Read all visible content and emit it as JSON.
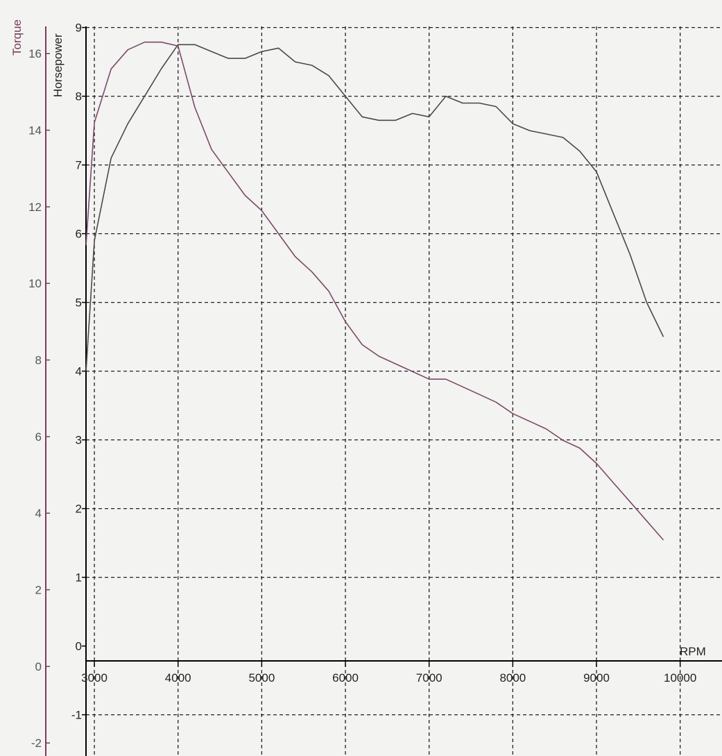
{
  "chart_data": {
    "type": "line",
    "grid": true,
    "xlabel": "RPM",
    "xlim": [
      2900,
      10500
    ],
    "x_ticks": [
      {
        "v": 3000,
        "label": "3000"
      },
      {
        "v": 4000,
        "label": "4000"
      },
      {
        "v": 5000,
        "label": "5000"
      },
      {
        "v": 6000,
        "label": "6000"
      },
      {
        "v": 7000,
        "label": "7000"
      },
      {
        "v": 8000,
        "label": "8000"
      },
      {
        "v": 9000,
        "label": "9000"
      },
      {
        "v": 10000,
        "label": "10000"
      }
    ],
    "y_axes": [
      {
        "id": "hp",
        "label": "Horsepower",
        "color": "#222222",
        "ylim": [
          -1.6,
          9.4
        ],
        "ticks": [
          {
            "v": 9,
            "label": "9"
          },
          {
            "v": 8,
            "label": "8"
          },
          {
            "v": 7,
            "label": "7"
          },
          {
            "v": 6,
            "label": "6"
          },
          {
            "v": 5,
            "label": "5"
          },
          {
            "v": 4,
            "label": "4"
          },
          {
            "v": 3,
            "label": "3"
          },
          {
            "v": 2,
            "label": "2"
          },
          {
            "v": 1,
            "label": "1"
          },
          {
            "v": 0,
            "label": "0"
          },
          {
            "v": -1,
            "label": "-1"
          }
        ]
      },
      {
        "id": "torque",
        "label": "Torque",
        "color": "#7a3a5a",
        "ylim": [
          -2.34,
          17.4
        ],
        "ticks": [
          {
            "v": 16,
            "label": "16"
          },
          {
            "v": 14,
            "label": "14"
          },
          {
            "v": 12,
            "label": "12"
          },
          {
            "v": 10,
            "label": "10"
          },
          {
            "v": 8,
            "label": "8"
          },
          {
            "v": 6,
            "label": "6"
          },
          {
            "v": 4,
            "label": "4"
          },
          {
            "v": 2,
            "label": "2"
          },
          {
            "v": 0,
            "label": "0"
          },
          {
            "v": -2,
            "label": "-2"
          }
        ]
      }
    ],
    "series": [
      {
        "axis": "hp",
        "color": "#4a4a40",
        "x": [
          2900,
          3000,
          3200,
          3400,
          3600,
          3800,
          4000,
          4200,
          4400,
          4600,
          4800,
          5000,
          5200,
          5400,
          5600,
          5800,
          6000,
          6200,
          6400,
          6600,
          6800,
          7000,
          7200,
          7400,
          7600,
          7800,
          8000,
          8200,
          8400,
          8600,
          8800,
          9000,
          9200,
          9400,
          9600,
          9800
        ],
        "y": [
          4.0,
          5.9,
          7.1,
          7.6,
          8.0,
          8.4,
          8.75,
          8.75,
          8.65,
          8.55,
          8.55,
          8.65,
          8.7,
          8.5,
          8.45,
          8.3,
          8.0,
          7.7,
          7.65,
          7.65,
          7.75,
          7.7,
          8.0,
          7.9,
          7.9,
          7.85,
          7.6,
          7.5,
          7.45,
          7.4,
          7.2,
          6.9,
          6.3,
          5.7,
          5.0,
          4.5
        ]
      },
      {
        "axis": "torque",
        "color": "#7a4a6a",
        "x": [
          2900,
          3000,
          3200,
          3400,
          3600,
          3800,
          4000,
          4200,
          4400,
          4600,
          4800,
          5000,
          5200,
          5400,
          5600,
          5800,
          6000,
          6200,
          6400,
          6600,
          6800,
          7000,
          7200,
          7400,
          7600,
          7800,
          8000,
          8200,
          8400,
          8600,
          8800,
          9000,
          9200,
          9400,
          9600,
          9800
        ],
        "y": [
          11.0,
          14.2,
          15.6,
          16.1,
          16.3,
          16.3,
          16.2,
          14.6,
          13.5,
          12.9,
          12.3,
          11.9,
          11.3,
          10.7,
          10.3,
          9.8,
          9.0,
          8.4,
          8.1,
          7.9,
          7.7,
          7.5,
          7.5,
          7.3,
          7.1,
          6.9,
          6.6,
          6.4,
          6.2,
          5.9,
          5.7,
          5.3,
          4.8,
          4.3,
          3.8,
          3.3
        ]
      }
    ]
  }
}
